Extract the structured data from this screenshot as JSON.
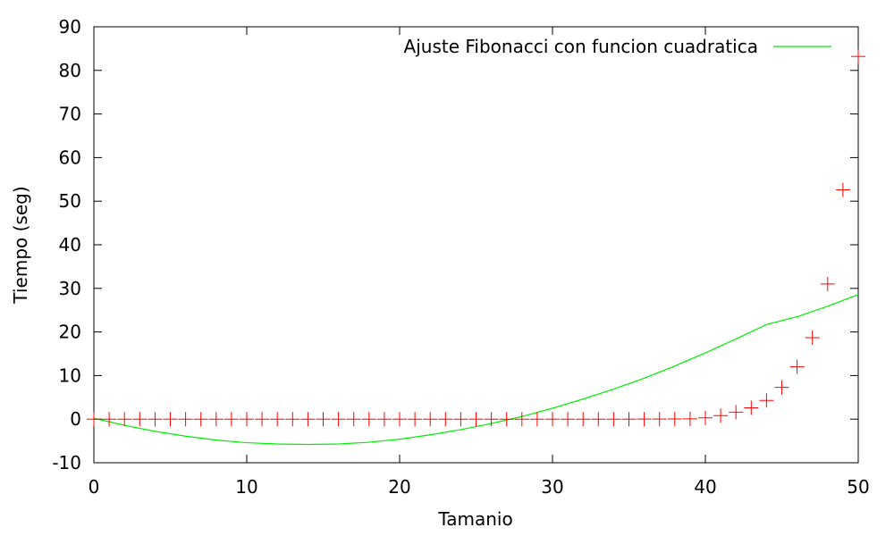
{
  "chart_data": {
    "type": "line",
    "xlabel": "Tamanio",
    "ylabel": "Tiempo (seg)",
    "xlim": [
      0,
      50
    ],
    "ylim": [
      -10,
      90
    ],
    "xticks": [
      "0",
      "10",
      "20",
      "30",
      "40",
      "50"
    ],
    "yticks": [
      "-10",
      "0",
      "10",
      "20",
      "30",
      "40",
      "50",
      "60",
      "70",
      "80",
      "90"
    ],
    "grid": false,
    "legend_position": "top-right",
    "series": [
      {
        "name": "",
        "style": "points",
        "marker": "plus",
        "color": "#ff0000",
        "x": [
          0,
          1,
          2,
          3,
          4,
          5,
          6,
          7,
          8,
          9,
          10,
          11,
          12,
          13,
          14,
          15,
          16,
          17,
          18,
          19,
          20,
          21,
          22,
          23,
          24,
          25,
          26,
          27,
          28,
          29,
          30,
          31,
          32,
          33,
          34,
          35,
          36,
          37,
          38,
          39,
          40,
          41,
          42,
          43,
          44,
          45,
          46,
          47,
          48,
          49,
          50
        ],
        "y": [
          0,
          0,
          0,
          0,
          0,
          0,
          0,
          0,
          0,
          0,
          0,
          0,
          0,
          0,
          0,
          0,
          0,
          0,
          0,
          0,
          0,
          0,
          0,
          0,
          0,
          0,
          0,
          0,
          0,
          0,
          0,
          0,
          0,
          0,
          0,
          0,
          0.01,
          0.02,
          0.04,
          0.07,
          0.3,
          0.8,
          1.6,
          2.6,
          4.3,
          7.3,
          12.0,
          18.7,
          31.0,
          52.6,
          83.2
        ]
      },
      {
        "name": "Ajuste Fibonacci con funcion cuadratica",
        "style": "line",
        "color": "#00ee00",
        "x": [
          0,
          2,
          4,
          6,
          8,
          10,
          12,
          14,
          16,
          18,
          20,
          22,
          24,
          26,
          28,
          30,
          32,
          34,
          36,
          38,
          40,
          42,
          44,
          46,
          48,
          50
        ],
        "y": [
          0.2,
          -1.4,
          -2.8,
          -3.9,
          -4.8,
          -5.4,
          -5.7,
          -5.8,
          -5.7,
          -5.3,
          -4.6,
          -3.6,
          -2.4,
          -1.0,
          0.6,
          2.5,
          4.6,
          6.9,
          9.4,
          12.2,
          15.2,
          18.4,
          21.7,
          23.5,
          25.9,
          28.6
        ]
      }
    ]
  }
}
